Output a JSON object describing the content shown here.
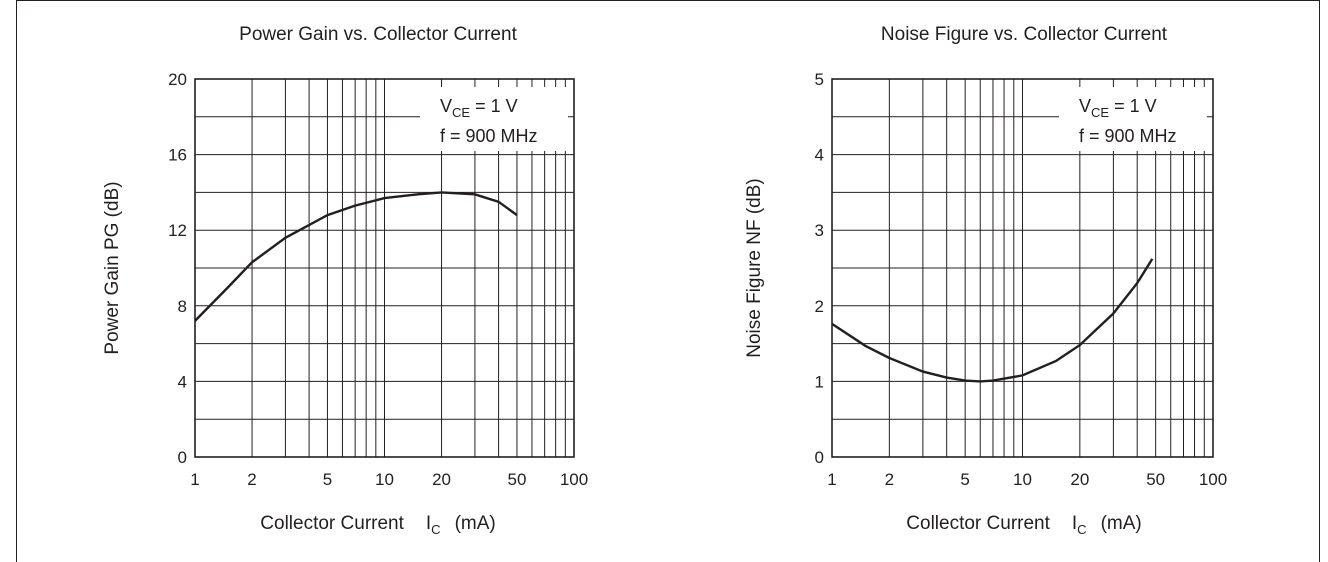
{
  "colors": {
    "ink": "#231f20",
    "background": "#ffffff"
  },
  "chart_data": [
    {
      "type": "line",
      "title": "Power Gain vs. Collector Current",
      "xlabel_main": "Collector Current",
      "xlabel_symbol": "I",
      "xlabel_sub": "C",
      "xlabel_unit": "(mA)",
      "ylabel": "Power Gain    PG  (dB)",
      "x_scale": "log",
      "xlim": [
        1,
        100
      ],
      "ylim": [
        0,
        20
      ],
      "xticks": [
        1,
        2,
        5,
        10,
        20,
        50,
        100
      ],
      "xtick_labels": [
        "1",
        "2",
        "5",
        "10",
        "20",
        "50",
        "100"
      ],
      "yticks": [
        0,
        4,
        8,
        12,
        16,
        20
      ],
      "ytick_labels": [
        "0",
        "4",
        "8",
        "12",
        "16",
        "20"
      ],
      "grid": true,
      "legend_position": "top-right",
      "condition_line1_symbol": "V",
      "condition_line1_sub": "CE",
      "condition_line1_value": " = 1 V",
      "condition_line2": "f = 900 MHz",
      "series": [
        {
          "x": [
            1,
            1.5,
            2,
            3,
            5,
            7,
            10,
            15,
            20,
            30,
            40,
            50
          ],
          "y": [
            7.2,
            9.0,
            10.3,
            11.6,
            12.8,
            13.3,
            13.7,
            13.9,
            14.0,
            13.9,
            13.5,
            12.8
          ]
        }
      ]
    },
    {
      "type": "line",
      "title": "Noise Figure vs. Collector Current",
      "xlabel_main": "Collector Current",
      "xlabel_symbol": "I",
      "xlabel_sub": "C",
      "xlabel_unit": "(mA)",
      "ylabel": "Noise Figure    NF   (dB)",
      "x_scale": "log",
      "xlim": [
        1,
        100
      ],
      "ylim": [
        0,
        5
      ],
      "xticks": [
        1,
        2,
        5,
        10,
        20,
        50,
        100
      ],
      "xtick_labels": [
        "1",
        "2",
        "5",
        "10",
        "20",
        "50",
        "100"
      ],
      "yticks": [
        0,
        1,
        2,
        3,
        4,
        5
      ],
      "ytick_labels": [
        "0",
        "1",
        "2",
        "3",
        "4",
        "5"
      ],
      "grid": true,
      "legend_position": "top-right",
      "condition_line1_symbol": "V",
      "condition_line1_sub": "CE",
      "condition_line1_value": " = 1 V",
      "condition_line2": "f = 900 MHz",
      "series": [
        {
          "x": [
            1,
            1.5,
            2,
            3,
            4,
            5,
            6,
            7,
            10,
            15,
            20,
            30,
            40,
            48
          ],
          "y": [
            1.76,
            1.47,
            1.31,
            1.13,
            1.05,
            1.01,
            1.0,
            1.01,
            1.08,
            1.27,
            1.48,
            1.9,
            2.3,
            2.62
          ]
        }
      ]
    }
  ]
}
